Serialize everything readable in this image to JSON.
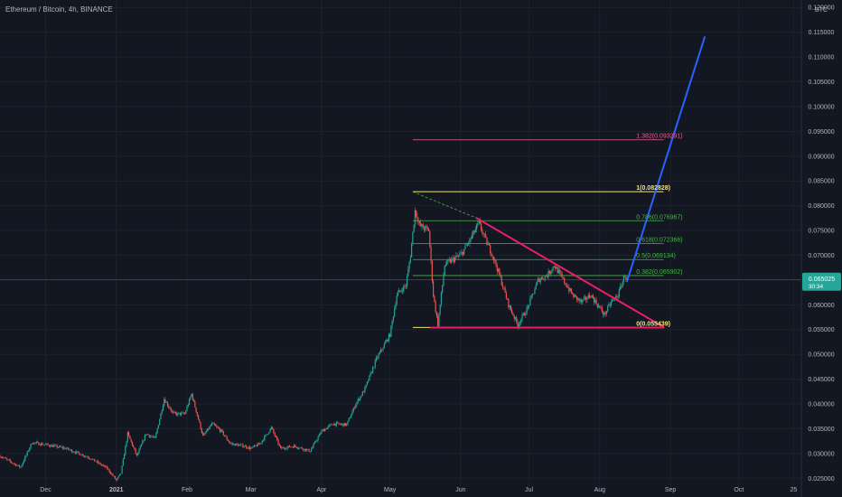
{
  "header": {
    "symbol_title": "Ethereum / Bitcoin, 4h, BINANCE",
    "currency": "BTC"
  },
  "colors": {
    "background": "#131722",
    "grid": "#1e222d",
    "candle_up": "#26a69a",
    "candle_down": "#ef5350",
    "fib_gold": "#f5e56b",
    "fib_green": "#4caf50",
    "fib_pink": "#e91e63",
    "fib_ext": "#f06292",
    "projection": "#2962ff",
    "price_tag": "#26a69a",
    "axis_text": "#b2b5be"
  },
  "chart_data": {
    "type": "candlestick",
    "title": "Ethereum / Bitcoin, 4h, BINANCE",
    "x_range": [
      "2020-11-11",
      "2021-10-28"
    ],
    "x_ticks": [
      {
        "date": "2020-12-01",
        "label": "Dec",
        "bold": false
      },
      {
        "date": "2021-01-01",
        "label": "2021",
        "bold": true
      },
      {
        "date": "2021-02-01",
        "label": "Feb",
        "bold": false
      },
      {
        "date": "2021-03-01",
        "label": "Mar",
        "bold": false
      },
      {
        "date": "2021-04-01",
        "label": "Apr",
        "bold": false
      },
      {
        "date": "2021-05-01",
        "label": "May",
        "bold": false
      },
      {
        "date": "2021-06-01",
        "label": "Jun",
        "bold": false
      },
      {
        "date": "2021-07-01",
        "label": "Jul",
        "bold": false
      },
      {
        "date": "2021-08-01",
        "label": "Aug",
        "bold": false
      },
      {
        "date": "2021-09-01",
        "label": "Sep",
        "bold": false
      },
      {
        "date": "2021-10-01",
        "label": "Oct",
        "bold": false
      },
      {
        "date": "2021-10-25",
        "label": "25",
        "bold": false
      }
    ],
    "ylim": [
      0.0225,
      0.1215
    ],
    "y_ticks": [
      "0.120000",
      "0.115000",
      "0.110000",
      "0.105000",
      "0.100000",
      "0.095000",
      "0.090000",
      "0.085000",
      "0.080000",
      "0.075000",
      "0.070000",
      "0.065000",
      "0.060000",
      "0.055000",
      "0.050000",
      "0.045000",
      "0.040000",
      "0.035000",
      "0.030000",
      "0.025000"
    ],
    "price_path": [
      [
        "2020-11-11",
        0.0295
      ],
      [
        "2020-11-20",
        0.0272
      ],
      [
        "2020-11-25",
        0.0322
      ],
      [
        "2020-12-01",
        0.0318
      ],
      [
        "2020-12-10",
        0.031
      ],
      [
        "2020-12-20",
        0.0292
      ],
      [
        "2020-12-28",
        0.027
      ],
      [
        "2021-01-01",
        0.0246
      ],
      [
        "2021-01-03",
        0.026
      ],
      [
        "2021-01-06",
        0.034
      ],
      [
        "2021-01-10",
        0.0295
      ],
      [
        "2021-01-14",
        0.034
      ],
      [
        "2021-01-18",
        0.033
      ],
      [
        "2021-01-22",
        0.041
      ],
      [
        "2021-01-26",
        0.038
      ],
      [
        "2021-01-31",
        0.038
      ],
      [
        "2021-02-03",
        0.042
      ],
      [
        "2021-02-08",
        0.0335
      ],
      [
        "2021-02-12",
        0.036
      ],
      [
        "2021-02-16",
        0.0345
      ],
      [
        "2021-02-20",
        0.032
      ],
      [
        "2021-02-26",
        0.0315
      ],
      [
        "2021-03-01",
        0.031
      ],
      [
        "2021-03-05",
        0.032
      ],
      [
        "2021-03-10",
        0.0352
      ],
      [
        "2021-03-14",
        0.031
      ],
      [
        "2021-03-20",
        0.0315
      ],
      [
        "2021-03-27",
        0.0305
      ],
      [
        "2021-04-01",
        0.0345
      ],
      [
        "2021-04-06",
        0.036
      ],
      [
        "2021-04-12",
        0.0358
      ],
      [
        "2021-04-16",
        0.04
      ],
      [
        "2021-04-20",
        0.043
      ],
      [
        "2021-04-25",
        0.049
      ],
      [
        "2021-05-01",
        0.054
      ],
      [
        "2021-05-04",
        0.062
      ],
      [
        "2021-05-08",
        0.064
      ],
      [
        "2021-05-10",
        0.07
      ],
      [
        "2021-05-12",
        0.079
      ],
      [
        "2021-05-14",
        0.076
      ],
      [
        "2021-05-18",
        0.075
      ],
      [
        "2021-05-20",
        0.062
      ],
      [
        "2021-05-22",
        0.056
      ],
      [
        "2021-05-25",
        0.068
      ],
      [
        "2021-05-28",
        0.069
      ],
      [
        "2021-06-01",
        0.07
      ],
      [
        "2021-06-05",
        0.073
      ],
      [
        "2021-06-09",
        0.0765
      ],
      [
        "2021-06-12",
        0.073
      ],
      [
        "2021-06-15",
        0.07
      ],
      [
        "2021-06-18",
        0.066
      ],
      [
        "2021-06-22",
        0.06
      ],
      [
        "2021-06-26",
        0.056
      ],
      [
        "2021-06-30",
        0.059
      ],
      [
        "2021-07-05",
        0.065
      ],
      [
        "2021-07-09",
        0.066
      ],
      [
        "2021-07-12",
        0.068
      ],
      [
        "2021-07-16",
        0.065
      ],
      [
        "2021-07-20",
        0.062
      ],
      [
        "2021-07-24",
        0.0605
      ],
      [
        "2021-07-28",
        0.062
      ],
      [
        "2021-07-31",
        0.06
      ],
      [
        "2021-08-03",
        0.058
      ],
      [
        "2021-08-06",
        0.0605
      ],
      [
        "2021-08-09",
        0.062
      ],
      [
        "2021-08-12",
        0.066
      ],
      [
        "2021-08-13",
        0.065
      ]
    ],
    "fib_levels": [
      {
        "ratio": "0",
        "price": 0.055439,
        "label": "0(0.055439)",
        "color": "fib_gold",
        "bold": true,
        "x_start": "2021-05-11",
        "x_end": "2021-08-29"
      },
      {
        "ratio": "0.382",
        "price": 0.065902,
        "label": "0.382(0.065902)",
        "color": "fib_green",
        "bold": false,
        "x_start": "2021-05-11",
        "x_end": "2021-08-29"
      },
      {
        "ratio": "0.5",
        "price": 0.069134,
        "label": "0.5(0.069134)",
        "color": "fib_green",
        "bold": false,
        "x_start": "2021-05-11",
        "x_end": "2021-08-29"
      },
      {
        "ratio": "0.618",
        "price": 0.072366,
        "label": "0.618(0.072366)",
        "color": "fib_green",
        "bold": false,
        "x_start": "2021-05-11",
        "x_end": "2021-08-29"
      },
      {
        "ratio": "0.786",
        "price": 0.076967,
        "label": "0.786(0.076967)",
        "color": "fib_green",
        "bold": false,
        "x_start": "2021-05-11",
        "x_end": "2021-08-29"
      },
      {
        "ratio": "1",
        "price": 0.082828,
        "label": "1(0.082828)",
        "color": "fib_gold",
        "bold": true,
        "x_start": "2021-05-11",
        "x_end": "2021-08-29"
      },
      {
        "ratio": "1.382",
        "price": 0.093291,
        "label": "1.382(0.093291)",
        "color": "fib_ext",
        "bold": false,
        "x_start": "2021-05-11",
        "x_end": "2021-08-29"
      }
    ],
    "trendlines": [
      {
        "name": "descending-trendline",
        "color": "fib_pink",
        "points": [
          [
            "2021-06-08",
            0.0775
          ],
          [
            "2021-08-29",
            0.0555
          ]
        ]
      },
      {
        "name": "support-line",
        "color": "fib_pink",
        "points": [
          [
            "2021-05-19",
            0.0554
          ],
          [
            "2021-08-29",
            0.0554
          ]
        ]
      },
      {
        "name": "projection-line",
        "color": "projection",
        "points": [
          [
            "2021-08-13",
            0.0648
          ],
          [
            "2021-09-16",
            0.114
          ]
        ]
      }
    ],
    "dashed_lines": [
      {
        "name": "fib-anchor-dashed",
        "color": "fib_green",
        "points": [
          [
            "2021-05-11",
            0.0828
          ],
          [
            "2021-06-08",
            0.0775
          ]
        ]
      }
    ],
    "current_price": {
      "price": 0.065025,
      "label": "0.065025",
      "countdown": "30:34"
    }
  }
}
